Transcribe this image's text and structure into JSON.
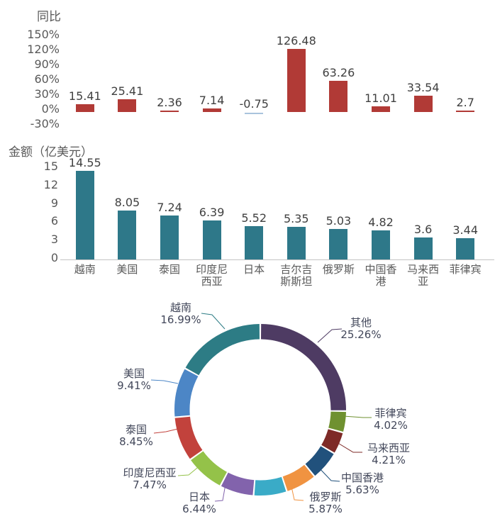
{
  "figure": {
    "background": "#ffffff"
  },
  "text_colors": {
    "axis_labels": "#595959",
    "data_labels": "#404040",
    "donut_labels": "#42475a"
  },
  "chart_data": {
    "yoy": {
      "type": "bar",
      "title": "同比",
      "value_suffix": "%",
      "categories": [
        "越南",
        "美国",
        "泰国",
        "印度尼西亚",
        "日本",
        "吉尔吉斯斯坦",
        "俄罗斯",
        "中国香港",
        "马来西亚",
        "菲律宾"
      ],
      "values": [
        15.41,
        25.41,
        2.36,
        7.14,
        -0.75,
        126.48,
        63.26,
        11.01,
        33.54,
        2.7
      ],
      "value_labels": [
        "15.41",
        "25.41",
        "2.36",
        "7.14",
        "-0.75",
        "126.48",
        "63.26",
        "11.01",
        "33.54",
        "2.7"
      ],
      "ylim": [
        -30,
        150
      ],
      "yticks": [
        {
          "label": "150%",
          "value": 150
        },
        {
          "label": "120%",
          "value": 120
        },
        {
          "label": "90%",
          "value": 90
        },
        {
          "label": "60%",
          "value": 60
        },
        {
          "label": "30%",
          "value": 30
        },
        {
          "label": "0%",
          "value": 0
        },
        {
          "label": "-30%",
          "value": -30
        }
      ],
      "grid": false,
      "x_axis_labels_shown": false,
      "bar_color": "#b13a36",
      "negative_bar_color": "#a9c4dd"
    },
    "amount": {
      "type": "bar",
      "title": "金额（亿美元）",
      "categories": [
        "越南",
        "美国",
        "泰国",
        "印度尼西亚",
        "日本",
        "吉尔吉斯斯坦",
        "俄罗斯",
        "中国香港",
        "马来西亚",
        "菲律宾"
      ],
      "values": [
        14.55,
        8.05,
        7.24,
        6.39,
        5.52,
        5.35,
        5.03,
        4.82,
        3.6,
        3.44
      ],
      "value_labels": [
        "14.55",
        "8.05",
        "7.24",
        "6.39",
        "5.52",
        "5.35",
        "5.03",
        "4.82",
        "3.6",
        "3.44"
      ],
      "ylim": [
        0,
        15
      ],
      "yticks": [
        {
          "label": "15",
          "value": 15
        },
        {
          "label": "12",
          "value": 12
        },
        {
          "label": "9",
          "value": 9
        },
        {
          "label": "6",
          "value": 6
        },
        {
          "label": "3",
          "value": 3
        },
        {
          "label": "0",
          "value": 0
        }
      ],
      "grid": false,
      "x_axis_labels_shown": true,
      "bar_color": "#2e7889",
      "axis_line_color": "#c3c3c3"
    },
    "share": {
      "type": "pie",
      "subtype": "donut",
      "start": "top",
      "direction": "clockwise",
      "segments": [
        {
          "label": "其他",
          "pct": 25.26,
          "pct_label": "25.26%",
          "color": "#4e3b63"
        },
        {
          "label": "菲律宾",
          "pct": 4.02,
          "pct_label": "4.02%",
          "color": "#6f9130"
        },
        {
          "label": "马来西亚",
          "pct": 4.21,
          "pct_label": "4.21%",
          "color": "#7e2a27"
        },
        {
          "label": "中国香港",
          "pct": 5.63,
          "pct_label": "5.63%",
          "color": "#21517c"
        },
        {
          "label": "俄罗斯",
          "pct": 5.87,
          "pct_label": "5.87%",
          "color": "#f09341"
        },
        {
          "label": "",
          "pct": 6.25,
          "pct_label": "",
          "color": "#3aabc7"
        },
        {
          "label": "日本",
          "pct": 6.44,
          "pct_label": "6.44%",
          "color": "#8263ac"
        },
        {
          "label": "印度尼西亚",
          "pct": 7.47,
          "pct_label": "7.47%",
          "color": "#94c249"
        },
        {
          "label": "泰国",
          "pct": 8.45,
          "pct_label": "8.45%",
          "color": "#c2423c"
        },
        {
          "label": "美国",
          "pct": 9.41,
          "pct_label": "9.41%",
          "color": "#4c86c6"
        },
        {
          "label": "越南",
          "pct": 16.99,
          "pct_label": "16.99%",
          "color": "#2d7c85"
        }
      ]
    }
  }
}
